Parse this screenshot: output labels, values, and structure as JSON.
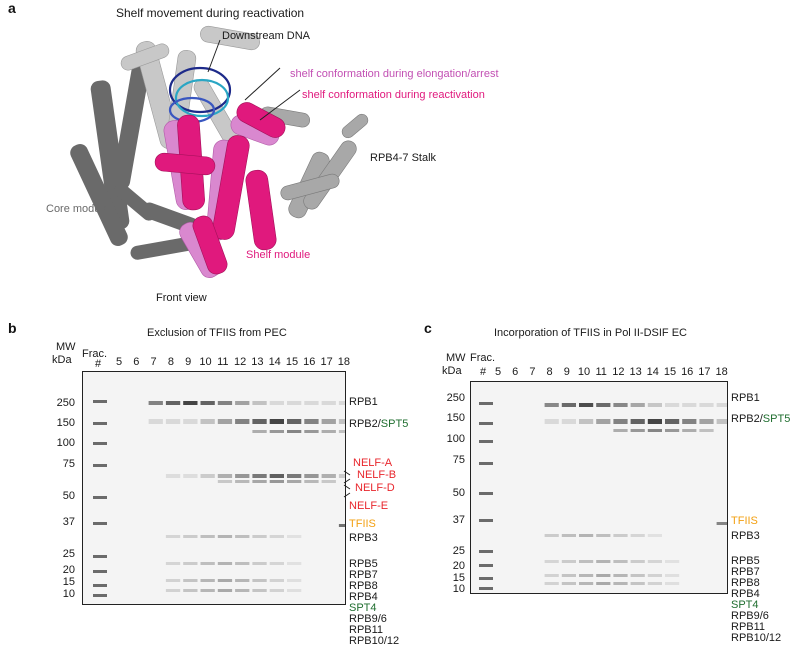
{
  "panel_a": {
    "letter": "a",
    "title": "Shelf movement during reactivation",
    "labels": {
      "downstream_dna": "Downstream DNA",
      "shelf_elong": "shelf conformation during elongation/arrest",
      "shelf_react": "shelf conformation during reactivation",
      "stalk": "RPB4-7 Stalk",
      "core": "Core module",
      "shelf": "Shelf module",
      "front": "Front view"
    }
  },
  "panel_b": {
    "letter": "b",
    "title": "Exclusion of TFIIS from PEC",
    "mw_label": "MW",
    "kda_label": "kDa",
    "frac_label": "Frac.",
    "frac_hash": "#",
    "fractions": [
      "5",
      "6",
      "7",
      "8",
      "9",
      "10",
      "11",
      "12",
      "13",
      "14",
      "15",
      "16",
      "17",
      "18"
    ],
    "mw_markers": [
      "250",
      "150",
      "100",
      "75",
      "50",
      "37",
      "25",
      "20",
      "15",
      "10"
    ],
    "proteins": {
      "rpb1": "RPB1",
      "rpb2": "RPB2/",
      "spt5": "SPT5",
      "nelfa": "NELF-A",
      "nelfb": "NELF-B",
      "nelfd": "NELF-D",
      "nelfe": "NELF-E",
      "tfiis": "TFIIS",
      "rpb3": "RPB3",
      "rpb5": "RPB5",
      "rpb7": "RPB7",
      "rpb8": "RPB8",
      "rpb4": "RPB4",
      "spt4": "SPT4",
      "rpb96": "RPB9/6",
      "rpb11": "RPB11",
      "rpb1012": "RPB10/12"
    }
  },
  "panel_c": {
    "letter": "c",
    "title": "Incorporation of TFIIS in Pol II-DSIF EC",
    "mw_label": "MW",
    "kda_label": "kDa",
    "frac_label": "Frac.",
    "frac_hash": "#",
    "fractions": [
      "5",
      "6",
      "7",
      "8",
      "9",
      "10",
      "11",
      "12",
      "13",
      "14",
      "15",
      "16",
      "17",
      "18"
    ],
    "mw_markers": [
      "250",
      "150",
      "100",
      "75",
      "50",
      "37",
      "25",
      "20",
      "15",
      "10"
    ],
    "proteins": {
      "rpb1": "RPB1",
      "rpb2": "RPB2/",
      "spt5": "SPT5",
      "tfiis": "TFIIS",
      "rpb3": "RPB3",
      "rpb5": "RPB5",
      "rpb7": "RPB7",
      "rpb8": "RPB8",
      "rpb4": "RPB4",
      "spt4": "SPT4",
      "rpb96": "RPB9/6",
      "rpb11": "RPB11",
      "rpb1012": "RPB10/12"
    }
  },
  "colors": {
    "elongation_shelf": "#c24fb3",
    "reactivation_shelf": "#e0197d",
    "nelf": "#e8262c",
    "tfiis": "#f3a012",
    "spt": "#1f6e2f"
  }
}
